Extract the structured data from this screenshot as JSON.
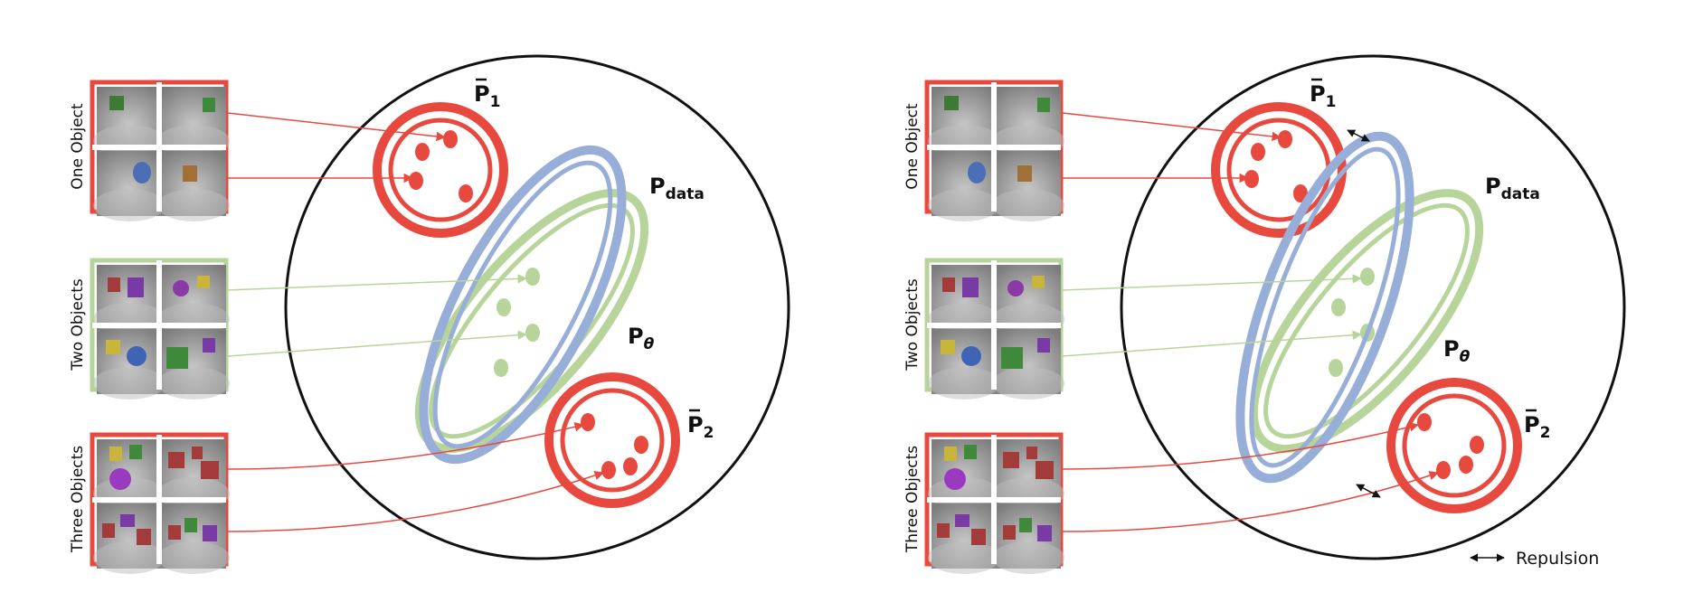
{
  "panels": [
    {
      "id": "left",
      "groups": [
        {
          "label": "One Object",
          "color": "#e8493f"
        },
        {
          "label": "Two Objects",
          "color": "#b7d59a"
        },
        {
          "label": "Three Objects",
          "color": "#e8493f"
        }
      ],
      "distributions": {
        "p1": {
          "main": "P",
          "sub": "1"
        },
        "pdata": {
          "main": "P",
          "sub": "data"
        },
        "ptheta": {
          "main": "P",
          "sub": "θ"
        },
        "p2": {
          "main": "P",
          "sub": "2"
        }
      }
    },
    {
      "id": "right",
      "groups": [
        {
          "label": "One Object",
          "color": "#e8493f"
        },
        {
          "label": "Two Objects",
          "color": "#b7d59a"
        },
        {
          "label": "Three Objects",
          "color": "#e8493f"
        }
      ],
      "distributions": {
        "p1": {
          "main": "P",
          "sub": "1"
        },
        "pdata": {
          "main": "P",
          "sub": "data"
        },
        "ptheta": {
          "main": "P",
          "sub": "θ"
        },
        "p2": {
          "main": "P",
          "sub": "2"
        }
      }
    }
  ],
  "legend": {
    "repulsion": "Repulsion"
  },
  "colors": {
    "red": "#e8493f",
    "green": "#b7d59a",
    "blue": "#97aed9",
    "circle": "#111111"
  }
}
